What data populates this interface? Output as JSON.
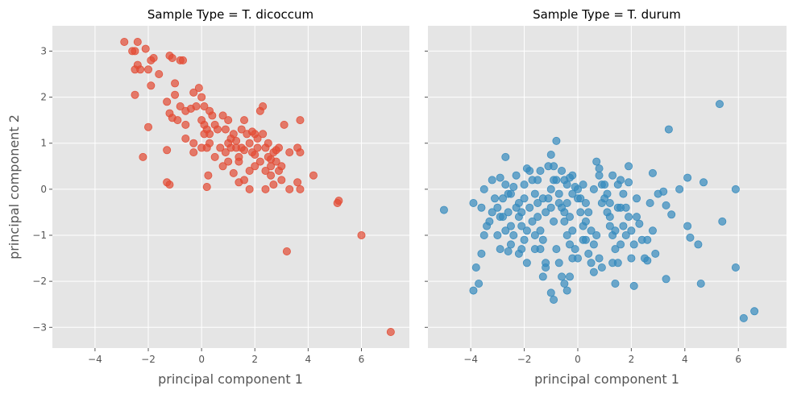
{
  "chart_data": [
    {
      "type": "scatter",
      "title": "Sample Type = T. dicoccum",
      "xlabel": "principal component 1",
      "ylabel": "principal component 2",
      "xlim": [
        -5.6,
        7.8
      ],
      "ylim": [
        -3.45,
        3.55
      ],
      "xticks": [
        -4,
        -2,
        0,
        2,
        4,
        6
      ],
      "yticks": [
        -3,
        -2,
        -1,
        0,
        1,
        2,
        3
      ],
      "grid": true,
      "color": "#E24A33",
      "points": [
        [
          -2.9,
          3.2
        ],
        [
          -2.6,
          3.0
        ],
        [
          -2.4,
          3.2
        ],
        [
          -2.5,
          3.0
        ],
        [
          -2.4,
          2.7
        ],
        [
          -2.3,
          2.6
        ],
        [
          -2.5,
          2.6
        ],
        [
          -2.1,
          3.05
        ],
        [
          -2.0,
          2.6
        ],
        [
          -1.8,
          2.85
        ],
        [
          -1.9,
          2.25
        ],
        [
          -1.6,
          2.5
        ],
        [
          -1.9,
          2.8
        ],
        [
          -2.5,
          2.05
        ],
        [
          -1.2,
          2.9
        ],
        [
          -1.1,
          2.85
        ],
        [
          -0.8,
          2.8
        ],
        [
          -0.7,
          2.8
        ],
        [
          -1.0,
          2.3
        ],
        [
          -1.0,
          2.05
        ],
        [
          -0.8,
          1.8
        ],
        [
          -1.3,
          1.9
        ],
        [
          -1.2,
          1.65
        ],
        [
          -1.1,
          1.55
        ],
        [
          -0.9,
          1.5
        ],
        [
          -0.6,
          1.7
        ],
        [
          -0.3,
          2.1
        ],
        [
          -0.1,
          2.2
        ],
        [
          0.0,
          2.0
        ],
        [
          -2.0,
          1.35
        ],
        [
          -2.2,
          0.7
        ],
        [
          -0.4,
          1.75
        ],
        [
          -0.2,
          1.8
        ],
        [
          -0.6,
          1.4
        ],
        [
          -0.6,
          1.1
        ],
        [
          -0.3,
          1.0
        ],
        [
          -0.3,
          0.8
        ],
        [
          -1.3,
          0.85
        ],
        [
          -1.3,
          0.15
        ],
        [
          -1.2,
          0.1
        ],
        [
          0.1,
          1.8
        ],
        [
          0.3,
          1.7
        ],
        [
          0.0,
          1.5
        ],
        [
          0.1,
          1.4
        ],
        [
          0.2,
          1.3
        ],
        [
          0.3,
          1.2
        ],
        [
          0.1,
          1.2
        ],
        [
          0.4,
          1.6
        ],
        [
          0.5,
          1.4
        ],
        [
          0.6,
          1.3
        ],
        [
          0.3,
          1.0
        ],
        [
          0.5,
          0.7
        ],
        [
          0.2,
          0.9
        ],
        [
          0.0,
          0.9
        ],
        [
          0.8,
          1.6
        ],
        [
          0.9,
          1.3
        ],
        [
          1.0,
          1.5
        ],
        [
          1.0,
          1.0
        ],
        [
          0.9,
          0.8
        ],
        [
          1.1,
          0.9
        ],
        [
          1.2,
          1.2
        ],
        [
          1.3,
          1.05
        ],
        [
          1.3,
          0.9
        ],
        [
          1.4,
          0.7
        ],
        [
          1.5,
          0.9
        ],
        [
          1.6,
          1.5
        ],
        [
          1.7,
          1.2
        ],
        [
          1.8,
          1.0
        ],
        [
          1.9,
          0.8
        ],
        [
          2.0,
          1.2
        ],
        [
          2.1,
          1.1
        ],
        [
          2.1,
          0.9
        ],
        [
          2.2,
          1.7
        ],
        [
          2.3,
          1.8
        ],
        [
          2.2,
          0.6
        ],
        [
          2.4,
          0.9
        ],
        [
          2.5,
          0.7
        ],
        [
          2.6,
          0.5
        ],
        [
          2.6,
          0.3
        ],
        [
          2.8,
          0.6
        ],
        [
          2.9,
          0.9
        ],
        [
          3.0,
          0.5
        ],
        [
          3.1,
          1.4
        ],
        [
          3.3,
          0.8
        ],
        [
          3.6,
          0.9
        ],
        [
          3.7,
          1.5
        ],
        [
          3.7,
          0.8
        ],
        [
          3.6,
          0.15
        ],
        [
          3.7,
          0.0
        ],
        [
          4.2,
          0.3
        ],
        [
          1.4,
          0.15
        ],
        [
          1.6,
          0.2
        ],
        [
          1.8,
          0.4
        ],
        [
          2.0,
          0.5
        ],
        [
          1.2,
          0.35
        ],
        [
          1.0,
          0.6
        ],
        [
          0.8,
          0.5
        ],
        [
          0.7,
          0.9
        ],
        [
          0.25,
          0.3
        ],
        [
          0.2,
          0.05
        ],
        [
          2.4,
          0.4
        ],
        [
          2.7,
          0.1
        ],
        [
          2.4,
          0.0
        ],
        [
          1.8,
          0.0
        ],
        [
          3.0,
          0.2
        ],
        [
          3.3,
          0.0
        ],
        [
          1.5,
          1.3
        ],
        [
          1.9,
          1.25
        ],
        [
          2.3,
          1.2
        ],
        [
          2.5,
          1.0
        ],
        [
          2.7,
          0.8
        ],
        [
          2.9,
          0.4
        ],
        [
          1.1,
          1.1
        ],
        [
          1.4,
          0.6
        ],
        [
          1.6,
          0.85
        ],
        [
          2.0,
          0.75
        ],
        [
          2.6,
          0.65
        ],
        [
          2.8,
          0.85
        ],
        [
          5.15,
          -0.25
        ],
        [
          5.1,
          -0.3
        ],
        [
          6.0,
          -1.0
        ],
        [
          3.2,
          -1.35
        ],
        [
          7.1,
          -3.1
        ]
      ]
    },
    {
      "type": "scatter",
      "title": "Sample Type = T. durum",
      "xlabel": "principal component 1",
      "ylabel": "",
      "xlim": [
        -5.6,
        7.8
      ],
      "ylim": [
        -3.45,
        3.55
      ],
      "xticks": [
        -4,
        -2,
        0,
        2,
        4,
        6
      ],
      "yticks": [
        -3,
        -2,
        -1,
        0,
        1,
        2,
        3
      ],
      "grid": true,
      "color": "#348ABD",
      "points": [
        [
          -5.0,
          -0.45
        ],
        [
          -3.9,
          -0.3
        ],
        [
          -3.6,
          -0.4
        ],
        [
          -3.8,
          -1.7
        ],
        [
          -3.7,
          -2.05
        ],
        [
          -3.9,
          -2.2
        ],
        [
          -3.5,
          -1.0
        ],
        [
          -3.4,
          -0.8
        ],
        [
          -3.6,
          -1.4
        ],
        [
          -3.5,
          0.0
        ],
        [
          -3.2,
          0.2
        ],
        [
          -3.2,
          -0.5
        ],
        [
          -3.0,
          -1.0
        ],
        [
          -2.9,
          -1.3
        ],
        [
          -2.8,
          -0.6
        ],
        [
          -2.8,
          -0.2
        ],
        [
          -2.9,
          0.25
        ],
        [
          -2.7,
          0.1
        ],
        [
          -2.6,
          -0.1
        ],
        [
          -2.6,
          -0.5
        ],
        [
          -2.5,
          -0.8
        ],
        [
          -2.5,
          -1.2
        ],
        [
          -2.6,
          -1.35
        ],
        [
          -2.4,
          -1.0
        ],
        [
          -2.3,
          -0.4
        ],
        [
          -2.2,
          -0.6
        ],
        [
          -2.1,
          -0.8
        ],
        [
          -2.0,
          -1.1
        ],
        [
          -2.1,
          -1.3
        ],
        [
          -1.9,
          -1.6
        ],
        [
          -1.8,
          0.4
        ],
        [
          -1.9,
          0.45
        ],
        [
          -1.7,
          0.2
        ],
        [
          -1.6,
          -0.1
        ],
        [
          -1.5,
          -0.3
        ],
        [
          -1.5,
          -0.6
        ],
        [
          -1.4,
          -0.9
        ],
        [
          -1.3,
          -1.1
        ],
        [
          -1.2,
          -1.7
        ],
        [
          -1.3,
          -1.9
        ],
        [
          -1.0,
          -2.25
        ],
        [
          -0.9,
          -2.4
        ],
        [
          -0.8,
          1.05
        ],
        [
          -1.0,
          0.75
        ],
        [
          -0.9,
          0.5
        ],
        [
          -0.8,
          0.2
        ],
        [
          -0.7,
          -0.1
        ],
        [
          -0.6,
          -0.4
        ],
        [
          -0.5,
          -0.7
        ],
        [
          -0.4,
          -1.0
        ],
        [
          -0.3,
          -1.2
        ],
        [
          -0.2,
          -1.5
        ],
        [
          -0.3,
          -1.9
        ],
        [
          -0.4,
          -2.2
        ],
        [
          -0.5,
          -2.05
        ],
        [
          -0.2,
          0.3
        ],
        [
          -0.1,
          0.05
        ],
        [
          0.0,
          -0.2
        ],
        [
          0.1,
          -0.5
        ],
        [
          0.2,
          -0.8
        ],
        [
          0.3,
          -1.1
        ],
        [
          0.4,
          -1.4
        ],
        [
          0.5,
          -1.6
        ],
        [
          0.6,
          -1.8
        ],
        [
          0.7,
          0.6
        ],
        [
          0.8,
          0.3
        ],
        [
          0.9,
          0.1
        ],
        [
          1.0,
          -0.2
        ],
        [
          1.1,
          -0.5
        ],
        [
          1.2,
          -0.8
        ],
        [
          1.3,
          -1.0
        ],
        [
          1.4,
          -1.3
        ],
        [
          1.5,
          -1.6
        ],
        [
          1.4,
          -2.05
        ],
        [
          1.6,
          0.2
        ],
        [
          1.7,
          -0.1
        ],
        [
          1.8,
          -0.4
        ],
        [
          1.9,
          -0.6
        ],
        [
          2.0,
          -0.9
        ],
        [
          2.1,
          -1.2
        ],
        [
          2.0,
          -1.5
        ],
        [
          2.1,
          -2.1
        ],
        [
          1.9,
          0.5
        ],
        [
          2.3,
          -0.75
        ],
        [
          2.4,
          -1.1
        ],
        [
          2.5,
          -1.5
        ],
        [
          2.7,
          -0.3
        ],
        [
          2.8,
          0.35
        ],
        [
          2.9,
          -1.4
        ],
        [
          3.0,
          -0.1
        ],
        [
          3.2,
          -0.05
        ],
        [
          3.3,
          -1.95
        ],
        [
          3.3,
          -0.35
        ],
        [
          3.4,
          1.3
        ],
        [
          3.5,
          -0.55
        ],
        [
          3.8,
          0.0
        ],
        [
          4.1,
          0.25
        ],
        [
          4.1,
          -0.8
        ],
        [
          4.2,
          -1.05
        ],
        [
          4.5,
          -1.2
        ],
        [
          4.6,
          -2.05
        ],
        [
          4.7,
          0.15
        ],
        [
          5.3,
          1.85
        ],
        [
          5.4,
          -0.7
        ],
        [
          5.9,
          0.0
        ],
        [
          5.9,
          -1.7
        ],
        [
          6.2,
          -2.8
        ],
        [
          6.6,
          -2.65
        ],
        [
          -3.3,
          -0.7
        ],
        [
          -3.1,
          -0.2
        ],
        [
          -2.7,
          0.7
        ],
        [
          -2.4,
          0.05
        ],
        [
          -2.2,
          -0.3
        ],
        [
          -2.0,
          0.1
        ],
        [
          -1.8,
          -0.4
        ],
        [
          -1.7,
          -0.7
        ],
        [
          -1.6,
          -1.0
        ],
        [
          -1.4,
          -1.3
        ],
        [
          -1.2,
          -0.5
        ],
        [
          -1.1,
          -0.2
        ],
        [
          -1.0,
          0.0
        ],
        [
          -0.9,
          -0.7
        ],
        [
          -0.8,
          -1.3
        ],
        [
          -0.7,
          -1.6
        ],
        [
          -0.6,
          0.4
        ],
        [
          -0.5,
          0.2
        ],
        [
          -0.4,
          -0.3
        ],
        [
          -0.3,
          -0.6
        ],
        [
          -0.2,
          -0.9
        ],
        [
          -0.1,
          -1.3
        ],
        [
          0.1,
          -0.2
        ],
        [
          0.2,
          0.1
        ],
        [
          0.3,
          -0.3
        ],
        [
          0.4,
          -0.5
        ],
        [
          0.5,
          -0.9
        ],
        [
          0.6,
          -1.2
        ],
        [
          0.8,
          -1.5
        ],
        [
          0.9,
          -1.7
        ],
        [
          1.0,
          0.1
        ],
        [
          1.1,
          -0.1
        ],
        [
          1.2,
          -0.3
        ],
        [
          1.3,
          0.3
        ],
        [
          1.5,
          0.1
        ],
        [
          1.6,
          -0.4
        ],
        [
          1.7,
          -0.8
        ],
        [
          1.8,
          -1.0
        ],
        [
          -2.9,
          -0.6
        ],
        [
          -2.5,
          -0.1
        ],
        [
          -2.3,
          0.3
        ],
        [
          -2.1,
          -0.5
        ],
        [
          -1.5,
          0.2
        ],
        [
          -1.3,
          -0.2
        ],
        [
          -1.1,
          0.5
        ],
        [
          -0.9,
          0.2
        ],
        [
          -0.7,
          -0.3
        ],
        [
          -0.5,
          -0.5
        ],
        [
          -0.4,
          0.1
        ],
        [
          -0.2,
          -0.1
        ],
        [
          0.0,
          0.0
        ],
        [
          0.3,
          -0.7
        ],
        [
          0.6,
          0.0
        ],
        [
          0.9,
          -0.3
        ],
        [
          1.2,
          -0.6
        ],
        [
          1.4,
          -0.9
        ],
        [
          1.6,
          -1.2
        ],
        [
          2.2,
          -0.6
        ],
        [
          2.6,
          -1.1
        ],
        [
          2.8,
          -0.9
        ],
        [
          -3.0,
          -0.4
        ],
        [
          -2.7,
          -0.9
        ],
        [
          -2.2,
          -1.4
        ],
        [
          -1.9,
          -0.9
        ],
        [
          -1.6,
          -1.3
        ],
        [
          -1.2,
          -1.6
        ],
        [
          -0.6,
          -1.9
        ],
        [
          0.0,
          -1.5
        ],
        [
          0.7,
          -1.0
        ],
        [
          1.3,
          -1.6
        ],
        [
          2.6,
          -1.55
        ],
        [
          -2.0,
          -0.2
        ],
        [
          -1.0,
          -0.4
        ],
        [
          0.2,
          -1.1
        ],
        [
          1.5,
          -0.4
        ],
        [
          2.2,
          -0.2
        ],
        [
          -1.4,
          0.4
        ],
        [
          -0.3,
          0.25
        ],
        [
          0.8,
          0.45
        ],
        [
          1.9,
          0.15
        ]
      ]
    }
  ]
}
